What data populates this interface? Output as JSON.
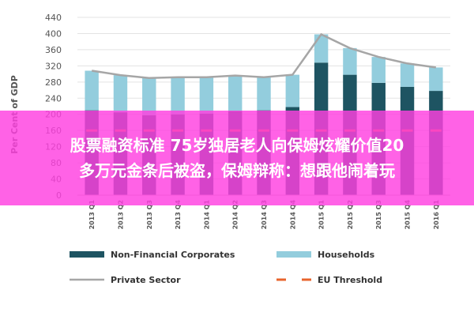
{
  "chart_data": {
    "type": "bar",
    "ylabel": "Per Cent of GDP",
    "ylim": [
      0,
      440
    ],
    "yticks": [
      0,
      40,
      80,
      120,
      160,
      200,
      240,
      280,
      320,
      360,
      400,
      440
    ],
    "categories": [
      "2013 Q1",
      "2013 Q2",
      "2013 Q3",
      "2013 Q4",
      "2014 Q1",
      "2014 Q2",
      "2014 Q3",
      "2014 Q4",
      "2015 Q1",
      "2015 Q2",
      "2015 Q3",
      "2015 Q4",
      "2016 Q1"
    ],
    "series": [
      {
        "name": "Non-Financial Corporates",
        "kind": "bar-stack",
        "color": "#1e5462",
        "values": [
          210,
          205,
          198,
          200,
          202,
          208,
          210,
          218,
          328,
          298,
          278,
          268,
          258
        ]
      },
      {
        "name": "Households",
        "kind": "bar-stack",
        "color": "#93cddd",
        "values": [
          98,
          92,
          92,
          92,
          90,
          88,
          82,
          80,
          70,
          66,
          64,
          58,
          58
        ]
      },
      {
        "name": "Private Sector",
        "kind": "line",
        "color": "#a6a6a6",
        "values": [
          308,
          297,
          290,
          292,
          292,
          296,
          292,
          298,
          398,
          364,
          342,
          326,
          316
        ]
      },
      {
        "name": "EU Threshold",
        "kind": "dash",
        "color": "#e8642c",
        "values": [
          160,
          160,
          160,
          160,
          160,
          160,
          160,
          160,
          160,
          160,
          160,
          160,
          160
        ]
      }
    ],
    "legend_position": "bottom"
  },
  "overlay": {
    "line1": "股票融资标准 75岁独居老人向保姆炫耀价值20",
    "line2": "多万元金条后被盗，保姆辩称：想跟他闹着玩"
  }
}
